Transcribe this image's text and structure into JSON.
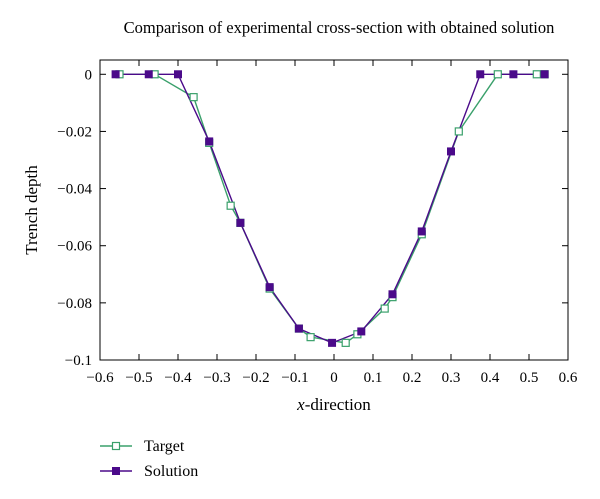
{
  "chart_data": {
    "type": "line",
    "title": "Comparison of experimental cross-section with obtained solution",
    "xlabel_italic": "x",
    "xlabel_rest": "-direction",
    "ylabel": "Trench depth",
    "xlim": [
      -0.6,
      0.6
    ],
    "ylim": [
      -0.1,
      0.005
    ],
    "xticks": [
      -0.6,
      -0.5,
      -0.4,
      -0.3,
      -0.2,
      -0.1,
      0,
      0.1,
      0.2,
      0.3,
      0.4,
      0.5,
      0.6
    ],
    "xtick_labels": [
      "−0.6",
      "−0.5",
      "−0.4",
      "−0.3",
      "−0.2",
      "−0.1",
      "0",
      "0.1",
      "0.2",
      "0.3",
      "0.4",
      "0.5",
      "0.6"
    ],
    "yticks": [
      0,
      -0.02,
      -0.04,
      -0.06,
      -0.08,
      -0.1
    ],
    "ytick_labels": [
      "0",
      "−0.02",
      "−0.04",
      "−0.06",
      "−0.08",
      "−0.1"
    ],
    "grid": false,
    "legend_position": "bottom-left, below plot",
    "series": [
      {
        "name": "Target",
        "color": "#3aa06b",
        "marker": "open-square",
        "x": [
          -0.55,
          -0.46,
          -0.36,
          -0.32,
          -0.265,
          -0.24,
          -0.165,
          -0.09,
          -0.06,
          0.03,
          0.06,
          0.13,
          0.15,
          0.225,
          0.32,
          0.42,
          0.52,
          0.54
        ],
        "y": [
          0,
          0,
          -0.008,
          -0.024,
          -0.046,
          -0.052,
          -0.075,
          -0.089,
          -0.092,
          -0.094,
          -0.091,
          -0.082,
          -0.078,
          -0.056,
          -0.02,
          0,
          0,
          0
        ]
      },
      {
        "name": "Solution",
        "color": "#4b0a8a",
        "marker": "filled-square",
        "x": [
          -0.56,
          -0.475,
          -0.4,
          -0.32,
          -0.24,
          -0.165,
          -0.09,
          -0.005,
          0.07,
          0.15,
          0.225,
          0.3,
          0.375,
          0.46,
          0.54
        ],
        "y": [
          0,
          0,
          0,
          -0.0235,
          -0.052,
          -0.0745,
          -0.089,
          -0.094,
          -0.09,
          -0.077,
          -0.055,
          -0.027,
          0,
          0,
          0
        ]
      }
    ]
  }
}
